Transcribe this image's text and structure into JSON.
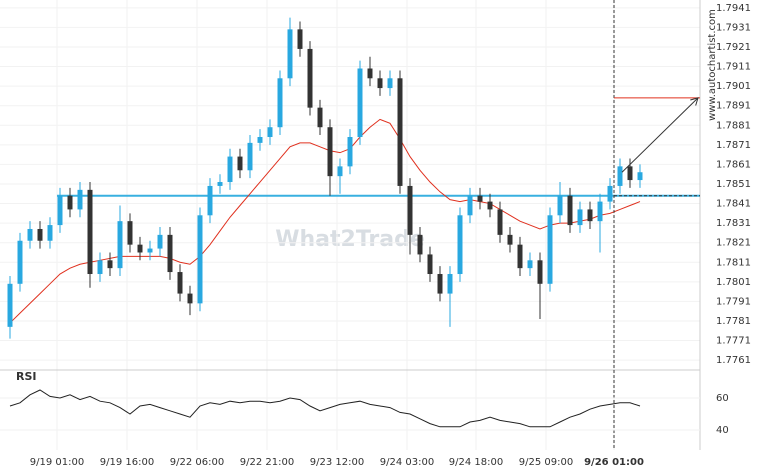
{
  "chart_data": {
    "type": "candlestick",
    "open": [
      1.7778,
      1.78,
      1.7822,
      1.7828,
      1.7822,
      1.783,
      1.7845,
      1.7838,
      1.7848,
      1.7805,
      1.7812,
      1.7808,
      1.7832,
      1.782,
      1.7816,
      1.7818,
      1.7825,
      1.7806,
      1.7795,
      1.779,
      1.7835,
      1.785,
      1.7852,
      1.7865,
      1.7858,
      1.7872,
      1.7875,
      1.788,
      1.7905,
      1.793,
      1.792,
      1.789,
      1.788,
      1.7855,
      1.786,
      1.7875,
      1.791,
      1.7905,
      1.79,
      1.7905,
      1.785,
      1.7825,
      1.7815,
      1.7805,
      1.7795,
      1.7805,
      1.7835,
      1.7845,
      1.7842,
      1.7838,
      1.7825,
      1.782,
      1.7808,
      1.7812,
      1.78,
      1.7835,
      1.7845,
      1.783,
      1.7838,
      1.7832,
      1.7842,
      1.785,
      1.786,
      1.7853
    ],
    "high": [
      1.7804,
      1.7826,
      1.7832,
      1.7832,
      1.7834,
      1.7849,
      1.7849,
      1.7852,
      1.7852,
      1.7816,
      1.7816,
      1.784,
      1.7836,
      1.7824,
      1.7822,
      1.7829,
      1.7829,
      1.781,
      1.7799,
      1.7839,
      1.7854,
      1.7856,
      1.7869,
      1.7869,
      1.7876,
      1.7879,
      1.7884,
      1.7909,
      1.7936,
      1.7934,
      1.7924,
      1.7894,
      1.7884,
      1.7864,
      1.7879,
      1.7914,
      1.7916,
      1.7909,
      1.7909,
      1.7909,
      1.7854,
      1.7829,
      1.7819,
      1.7809,
      1.7809,
      1.7839,
      1.7849,
      1.7849,
      1.7846,
      1.7842,
      1.7829,
      1.7824,
      1.7816,
      1.7816,
      1.7839,
      1.7852,
      1.7849,
      1.7842,
      1.7842,
      1.7846,
      1.7854,
      1.7864,
      1.7864,
      1.7861
    ],
    "low": [
      1.7772,
      1.7796,
      1.7818,
      1.7818,
      1.7818,
      1.7826,
      1.7834,
      1.7834,
      1.7798,
      1.7801,
      1.7804,
      1.7804,
      1.7816,
      1.7812,
      1.7812,
      1.7814,
      1.7802,
      1.7791,
      1.7784,
      1.7786,
      1.7831,
      1.7846,
      1.7848,
      1.7854,
      1.7854,
      1.7868,
      1.7871,
      1.7876,
      1.7901,
      1.7916,
      1.7886,
      1.7876,
      1.7845,
      1.7846,
      1.7856,
      1.7871,
      1.7901,
      1.7896,
      1.7896,
      1.7846,
      1.7815,
      1.7811,
      1.7801,
      1.7791,
      1.7778,
      1.7801,
      1.7831,
      1.7838,
      1.7834,
      1.7821,
      1.7816,
      1.7804,
      1.7804,
      1.7782,
      1.7796,
      1.7831,
      1.7826,
      1.7826,
      1.7828,
      1.7816,
      1.7838,
      1.7846,
      1.7849,
      1.7849
    ],
    "close": [
      1.78,
      1.7822,
      1.7828,
      1.7822,
      1.783,
      1.7845,
      1.7838,
      1.7848,
      1.7805,
      1.7812,
      1.7808,
      1.7832,
      1.782,
      1.7816,
      1.7818,
      1.7825,
      1.7806,
      1.7795,
      1.779,
      1.7835,
      1.785,
      1.7852,
      1.7865,
      1.7858,
      1.7872,
      1.7875,
      1.788,
      1.7905,
      1.793,
      1.792,
      1.789,
      1.788,
      1.7855,
      1.786,
      1.7875,
      1.791,
      1.7905,
      1.79,
      1.7905,
      1.785,
      1.7825,
      1.7815,
      1.7805,
      1.7795,
      1.7805,
      1.7835,
      1.7845,
      1.7842,
      1.7838,
      1.7825,
      1.782,
      1.7808,
      1.7812,
      1.78,
      1.7835,
      1.7845,
      1.783,
      1.7838,
      1.7832,
      1.7842,
      1.785,
      1.786,
      1.7853,
      1.7857
    ],
    "up_color": "#29a8e0",
    "down_color": "#333333",
    "ma": {
      "color": "#e0301e",
      "values": [
        1.778,
        1.7785,
        1.779,
        1.7795,
        1.78,
        1.7805,
        1.7808,
        1.781,
        1.7811,
        1.7812,
        1.7813,
        1.7814,
        1.7814,
        1.7814,
        1.7814,
        1.7814,
        1.7813,
        1.7811,
        1.781,
        1.7814,
        1.782,
        1.7827,
        1.7834,
        1.784,
        1.7846,
        1.7852,
        1.7858,
        1.7864,
        1.787,
        1.7872,
        1.7872,
        1.787,
        1.7868,
        1.7867,
        1.7869,
        1.7875,
        1.788,
        1.7884,
        1.7882,
        1.7874,
        1.7865,
        1.7858,
        1.7852,
        1.7847,
        1.7843,
        1.7842,
        1.7843,
        1.7842,
        1.7841,
        1.7838,
        1.7835,
        1.7832,
        1.783,
        1.7828,
        1.783,
        1.7831,
        1.7831,
        1.7832,
        1.7833,
        1.7835,
        1.7836,
        1.7838,
        1.784,
        1.7842
      ]
    },
    "support_level": 1.7845,
    "support_color": "#39b0e0",
    "target_level": 1.7895,
    "target_color": "#e0301e",
    "ylim": [
      1.7758,
      1.7945
    ],
    "yticks": [
      1.7941,
      1.7931,
      1.7921,
      1.7911,
      1.7901,
      1.7891,
      1.7881,
      1.7871,
      1.7861,
      1.7851,
      1.7841,
      1.7831,
      1.7821,
      1.7811,
      1.7801,
      1.7791,
      1.7781,
      1.7771,
      1.7761
    ],
    "xticks": [
      {
        "value": 4.7,
        "label": "9/19 01:00"
      },
      {
        "value": 11.7,
        "label": "9/19 16:00"
      },
      {
        "value": 18.7,
        "label": "9/22 06:00"
      },
      {
        "value": 25.7,
        "label": "9/22 21:00"
      },
      {
        "value": 32.7,
        "label": "9/23 12:00"
      },
      {
        "value": 39.7,
        "label": "9/24 03:00"
      },
      {
        "value": 46.6,
        "label": "9/24 18:00"
      },
      {
        "value": 53.6,
        "label": "9/25 09:00"
      },
      {
        "value": 60.4,
        "label": "9/26 01:00"
      }
    ],
    "bold_xtick": 8,
    "watermark": "What2Trade",
    "source": "www.autochartist.com",
    "rsi": {
      "label": "RSI",
      "ylim": [
        30,
        70
      ],
      "yticks": [
        60,
        40
      ],
      "values": [
        55,
        57,
        62,
        65,
        61,
        60,
        62,
        59,
        61,
        58,
        57,
        54,
        50,
        55,
        56,
        54,
        52,
        50,
        48,
        55,
        57,
        56,
        58,
        57,
        58,
        58,
        57,
        58,
        60,
        59,
        55,
        52,
        54,
        56,
        57,
        58,
        56,
        55,
        54,
        51,
        50,
        47,
        44,
        42,
        42,
        42,
        45,
        46,
        48,
        46,
        45,
        44,
        42,
        42,
        42,
        45,
        48,
        50,
        53,
        55,
        56,
        57,
        57,
        55
      ]
    }
  }
}
